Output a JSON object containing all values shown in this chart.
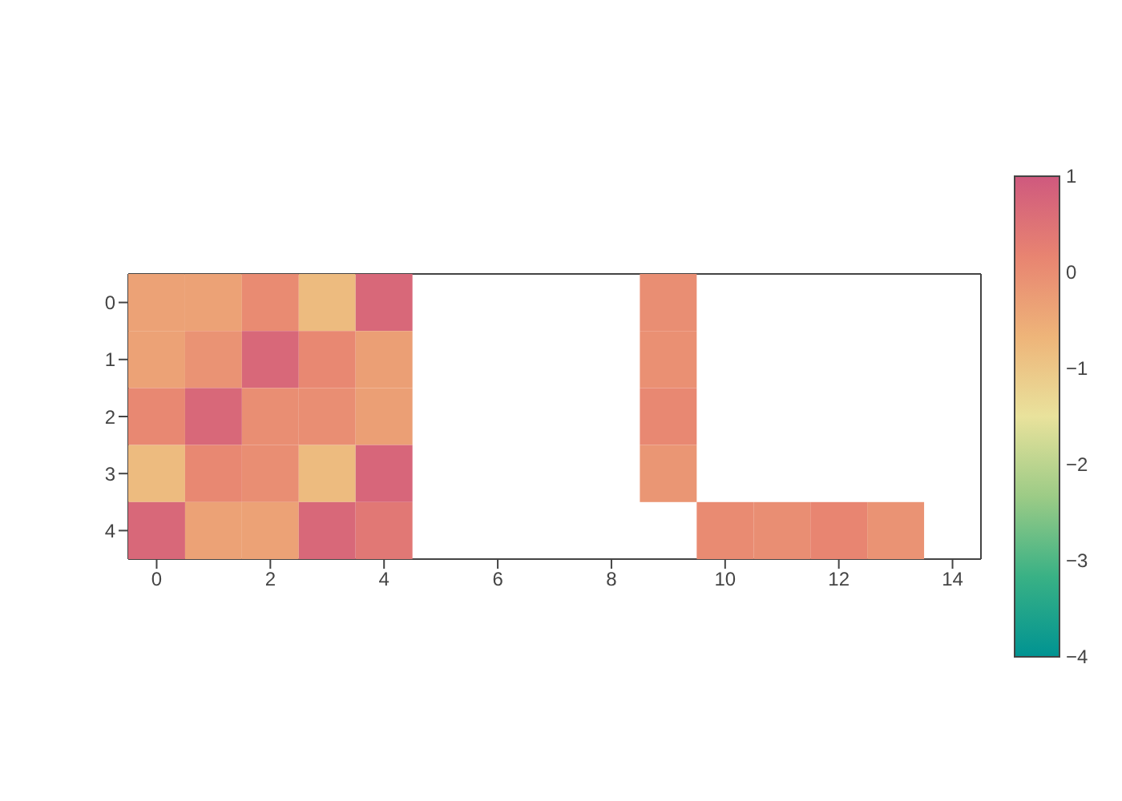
{
  "chart_data": {
    "type": "heatmap",
    "categories": [
      "0",
      null,
      "2",
      null,
      "4",
      null,
      "6",
      null,
      "8",
      null,
      "10",
      null,
      "12",
      null,
      "14"
    ],
    "y_categories": [
      "0",
      "1",
      "2",
      "3",
      "4"
    ],
    "cells": [
      [
        -0.35,
        -0.35,
        0.05,
        -0.8,
        0.7,
        null,
        null,
        null,
        null,
        0.0,
        null,
        null,
        null,
        null,
        null
      ],
      [
        -0.35,
        -0.1,
        0.7,
        0.1,
        -0.3,
        null,
        null,
        null,
        null,
        -0.05,
        null,
        null,
        null,
        null,
        null
      ],
      [
        0.1,
        0.7,
        0.0,
        0.0,
        -0.3,
        null,
        null,
        null,
        null,
        0.1,
        null,
        null,
        null,
        null,
        null
      ],
      [
        -0.8,
        0.1,
        0.0,
        -0.8,
        0.75,
        null,
        null,
        null,
        null,
        -0.15,
        null,
        null,
        null,
        null,
        null
      ],
      [
        0.7,
        -0.35,
        -0.35,
        0.7,
        0.4,
        null,
        null,
        null,
        null,
        null,
        0.05,
        0.0,
        0.15,
        -0.1,
        null
      ]
    ],
    "clim": [
      -4,
      1
    ],
    "cticks": [
      -4,
      -3,
      -2,
      -1,
      0,
      1
    ]
  }
}
